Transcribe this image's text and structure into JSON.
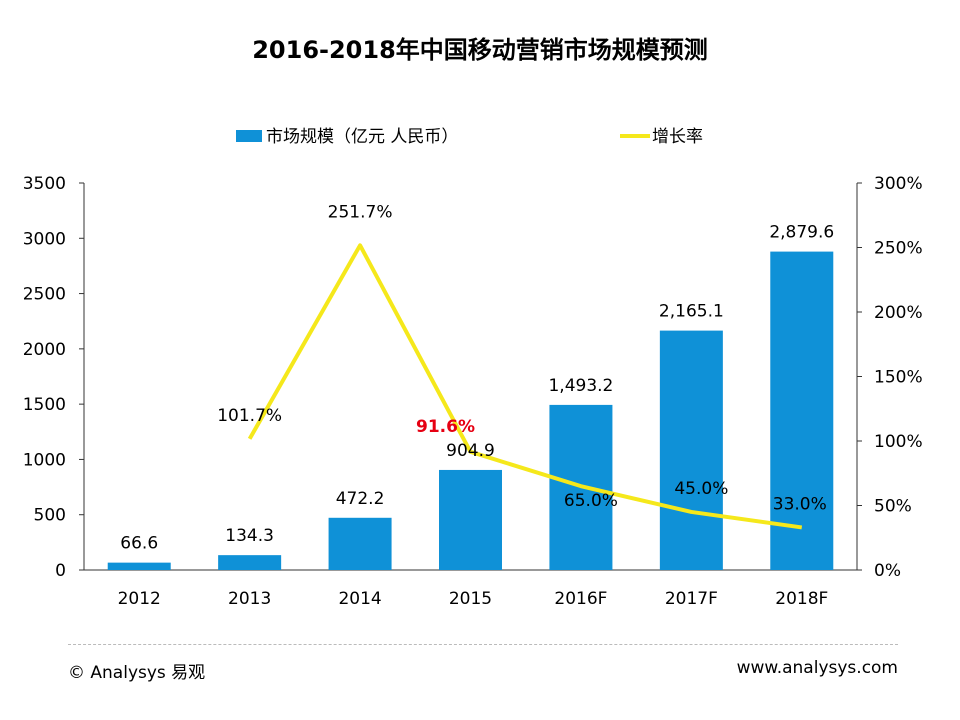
{
  "title": "2016-2018年中国移动营销市场规模预测",
  "footer": {
    "left": "© Analysys 易观",
    "right": "www.analysys.com"
  },
  "colors": {
    "bar": "#0f91d7",
    "line": "#f5e81b",
    "highlight": "#e60012"
  },
  "chart_data": {
    "type": "bar+line",
    "categories": [
      "2012",
      "2013",
      "2014",
      "2015",
      "2016F",
      "2017F",
      "2018F"
    ],
    "series": [
      {
        "name": "市场规模（亿元 人民币）",
        "type": "bar",
        "axis": "left",
        "values": [
          66.6,
          134.3,
          472.2,
          904.9,
          1493.2,
          2165.1,
          2879.6
        ],
        "labels": [
          "66.6",
          "134.3",
          "472.2",
          "904.9",
          "1,493.2",
          "2,165.1",
          "2,879.6"
        ]
      },
      {
        "name": "增长率",
        "type": "line",
        "axis": "right",
        "values": [
          null,
          101.7,
          251.7,
          91.6,
          65.0,
          45.0,
          33.0
        ],
        "labels": [
          "",
          "101.7%",
          "251.7%",
          "91.6%",
          "65.0%",
          "45.0%",
          "33.0%"
        ]
      }
    ],
    "left_axis": {
      "ylim": [
        0,
        3500
      ],
      "ticks": [
        "0",
        "500",
        "1000",
        "1500",
        "2000",
        "2500",
        "3000",
        "3500"
      ]
    },
    "right_axis": {
      "ylim": [
        0,
        300
      ],
      "ticks": [
        "0%",
        "50%",
        "100%",
        "150%",
        "200%",
        "250%",
        "300%"
      ]
    },
    "legend_position": "top",
    "grid": false,
    "highlighted_label_category": "2015"
  }
}
